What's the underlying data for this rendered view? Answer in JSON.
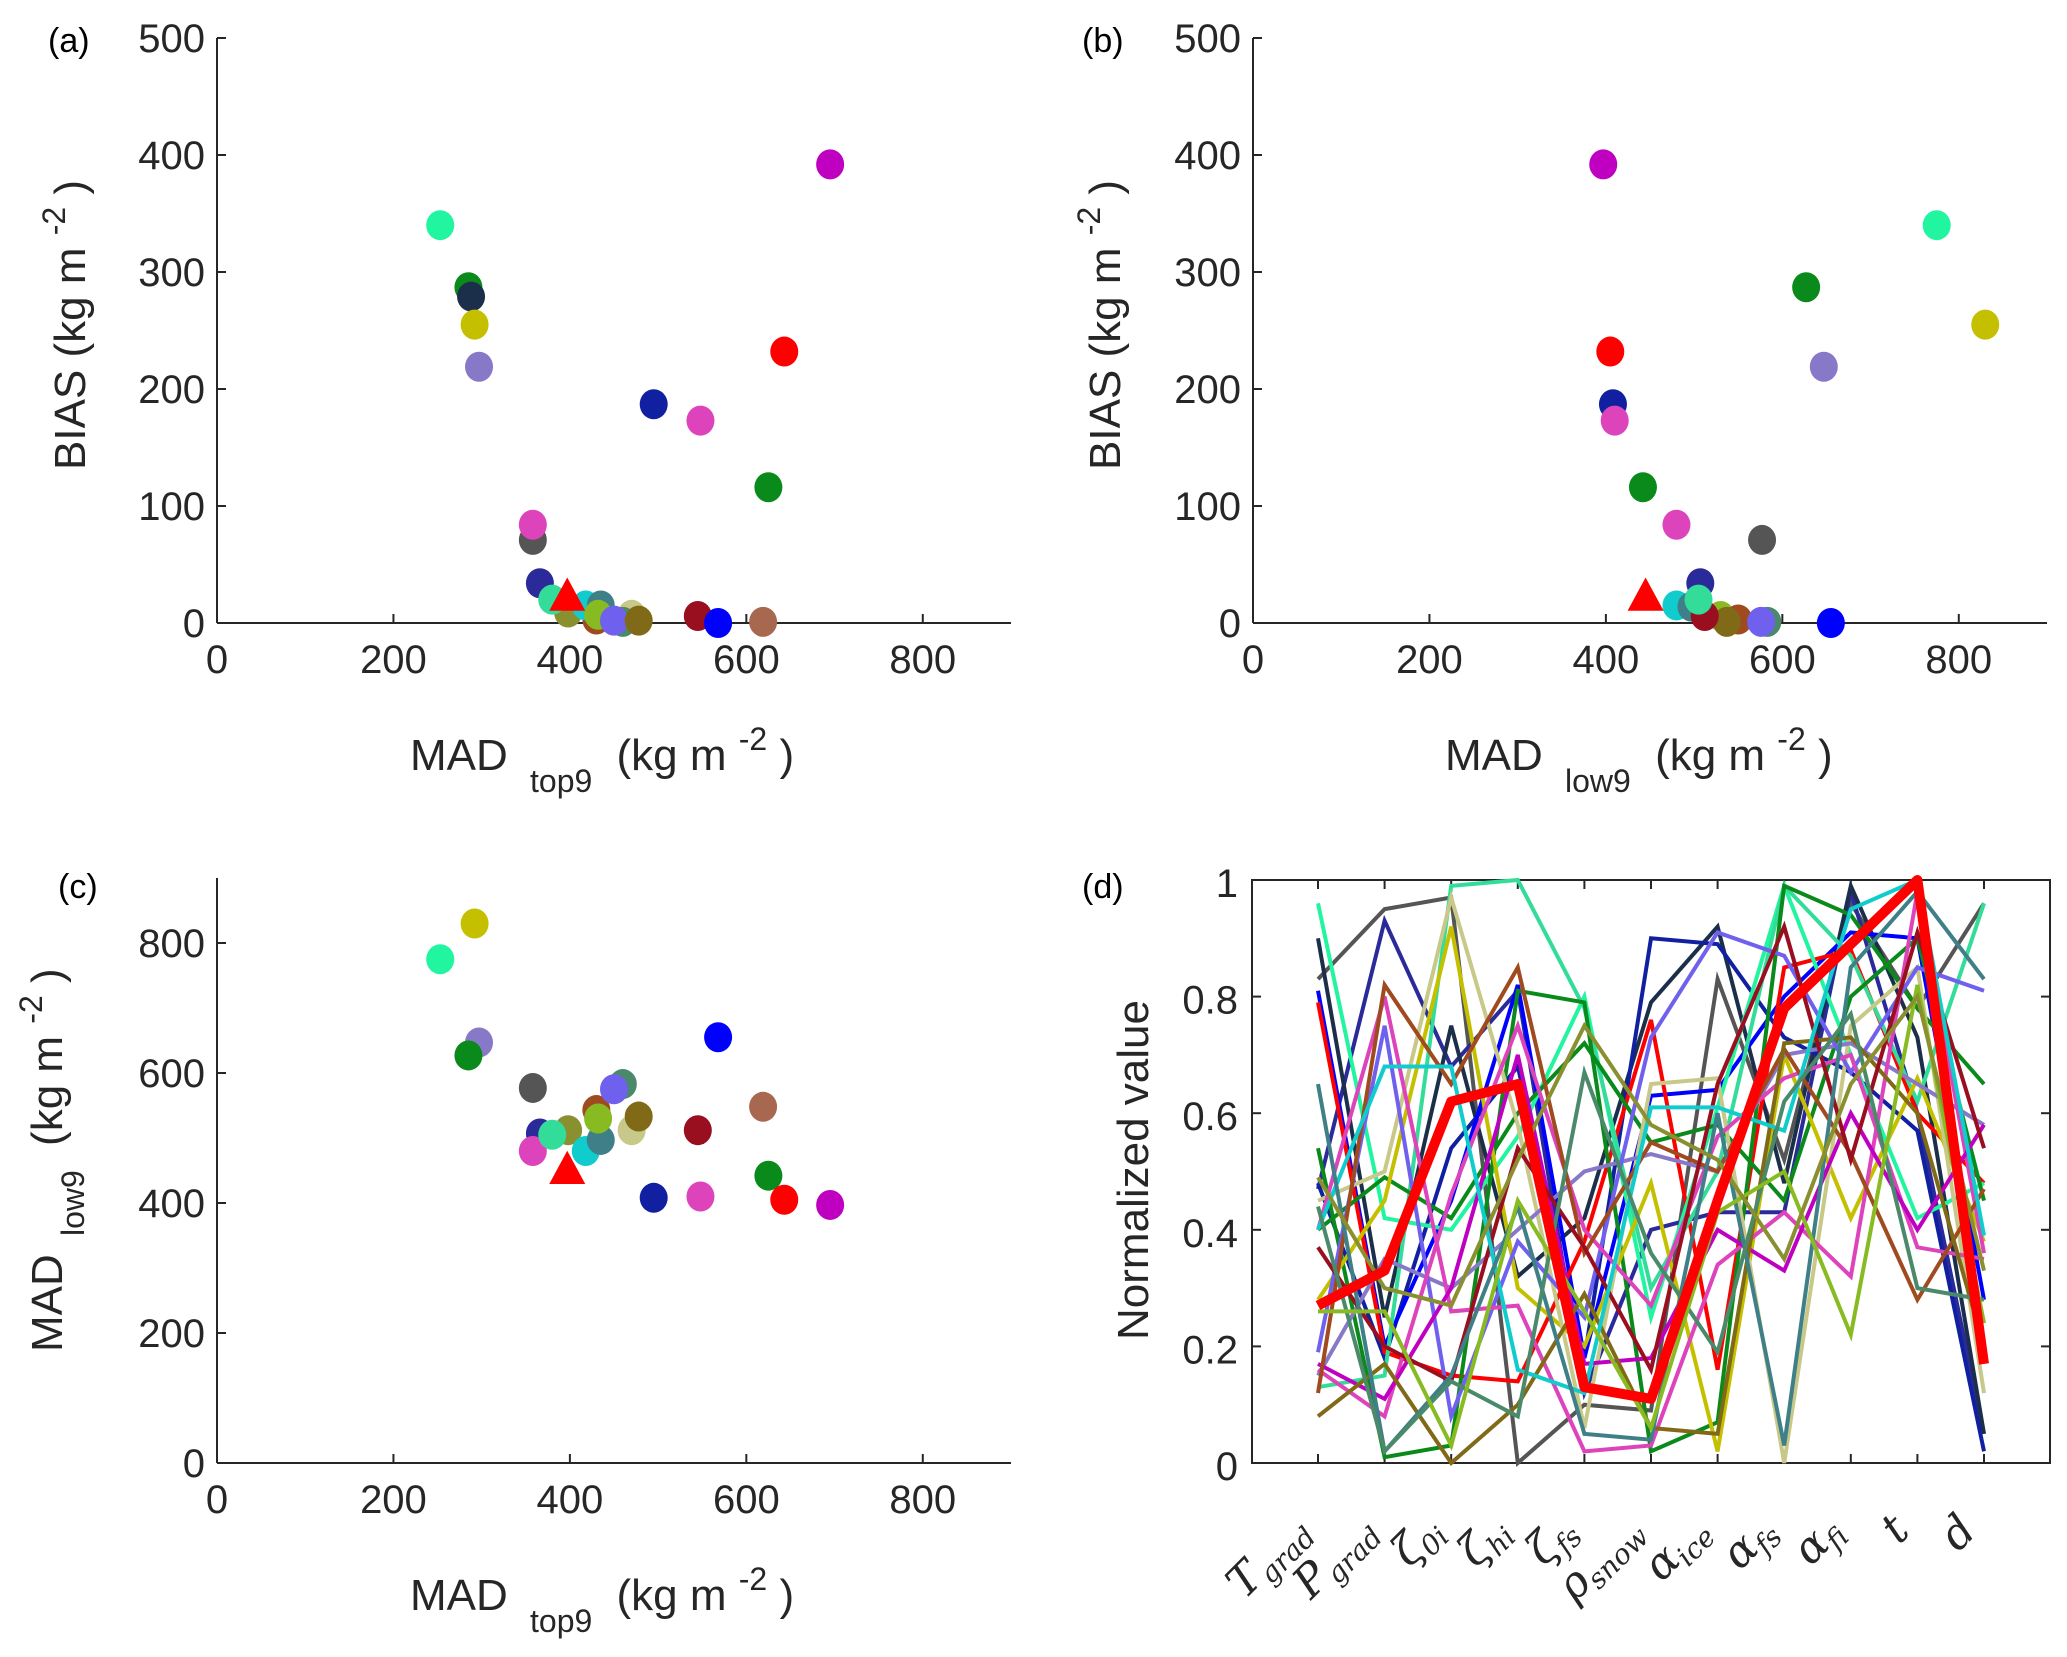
{
  "chart_data": [
    {
      "id": "a",
      "type": "scatter",
      "panel_label": "(a)",
      "xlabel": {
        "main": "MAD",
        "sub": "top9",
        "unit_pre": "(kg m",
        "unit_sup": "-2",
        "unit_post": ")"
      },
      "ylabel": {
        "main": "BIAS (kg m",
        "sup": "-2",
        "post": ")"
      },
      "xlim": [
        0,
        900
      ],
      "ylim": [
        0,
        500
      ],
      "xticks": [
        0,
        200,
        400,
        600,
        800
      ],
      "yticks": [
        0,
        100,
        200,
        300,
        400,
        500
      ],
      "points": [
        {
          "x": 253,
          "y": 340,
          "color": "#22f5a0"
        },
        {
          "x": 285,
          "y": 287,
          "color": "#0a8a1a"
        },
        {
          "x": 288,
          "y": 279,
          "color": "#1c2f4a"
        },
        {
          "x": 292,
          "y": 255,
          "color": "#c4c000"
        },
        {
          "x": 297,
          "y": 219,
          "color": "#8878c8"
        },
        {
          "x": 695,
          "y": 392,
          "color": "#c000c0"
        },
        {
          "x": 643,
          "y": 232,
          "color": "#ff0000"
        },
        {
          "x": 495,
          "y": 187,
          "color": "#1020a0"
        },
        {
          "x": 548,
          "y": 173,
          "color": "#dd44bb"
        },
        {
          "x": 625,
          "y": 116,
          "color": "#0a8a1a"
        },
        {
          "x": 358,
          "y": 71,
          "color": "#555555"
        },
        {
          "x": 358,
          "y": 84,
          "color": "#dd44bb"
        },
        {
          "x": 366,
          "y": 34,
          "color": "#2a2a9a"
        },
        {
          "x": 398,
          "y": 9,
          "color": "#8a9030"
        },
        {
          "x": 380,
          "y": 20,
          "color": "#33dd99"
        },
        {
          "x": 430,
          "y": 3,
          "color": "#a04a20"
        },
        {
          "x": 418,
          "y": 15,
          "color": "#11cccc"
        },
        {
          "x": 435,
          "y": 15,
          "color": "#3f7f88"
        },
        {
          "x": 470,
          "y": 7,
          "color": "#c8c888"
        },
        {
          "x": 432,
          "y": 7,
          "color": "#88bb22"
        },
        {
          "x": 460,
          "y": 1,
          "color": "#4a8a6a"
        },
        {
          "x": 450,
          "y": 2,
          "color": "#7060ee"
        },
        {
          "x": 478,
          "y": 2,
          "color": "#806a18"
        },
        {
          "x": 545,
          "y": 6,
          "color": "#990f20"
        },
        {
          "x": 568,
          "y": 0,
          "color": "#0000ff"
        },
        {
          "x": 619,
          "y": 1,
          "color": "#a86850"
        }
      ],
      "highlight": {
        "x": 397,
        "y": 22,
        "marker": "triangle",
        "color": "#ff0000"
      }
    },
    {
      "id": "b",
      "type": "scatter",
      "panel_label": "(b)",
      "xlabel": {
        "main": "MAD",
        "sub": "low9",
        "unit_pre": "(kg m",
        "unit_sup": "-2",
        "unit_post": ")"
      },
      "ylabel": {
        "main": "BIAS (kg m",
        "sup": "-2",
        "post": ")"
      },
      "xlim": [
        0,
        900
      ],
      "ylim": [
        0,
        500
      ],
      "xticks": [
        0,
        200,
        400,
        600,
        800
      ],
      "yticks": [
        0,
        100,
        200,
        300,
        400,
        500
      ],
      "points": [
        {
          "x": 775,
          "y": 340,
          "color": "#22f5a0"
        },
        {
          "x": 627,
          "y": 287,
          "color": "#0a8a1a"
        },
        {
          "x": 830,
          "y": 255,
          "color": "#c4c000"
        },
        {
          "x": 647,
          "y": 219,
          "color": "#8878c8"
        },
        {
          "x": 397,
          "y": 392,
          "color": "#c000c0"
        },
        {
          "x": 405,
          "y": 232,
          "color": "#ff0000"
        },
        {
          "x": 408,
          "y": 187,
          "color": "#1020a0"
        },
        {
          "x": 410,
          "y": 173,
          "color": "#dd44bb"
        },
        {
          "x": 442,
          "y": 116,
          "color": "#0a8a1a"
        },
        {
          "x": 480,
          "y": 84,
          "color": "#dd44bb"
        },
        {
          "x": 577,
          "y": 71,
          "color": "#555555"
        },
        {
          "x": 507,
          "y": 34,
          "color": "#2a2a9a"
        },
        {
          "x": 480,
          "y": 15,
          "color": "#11cccc"
        },
        {
          "x": 497,
          "y": 14,
          "color": "#3f7f88"
        },
        {
          "x": 530,
          "y": 6,
          "color": "#88bb22"
        },
        {
          "x": 550,
          "y": 3,
          "color": "#a04a20"
        },
        {
          "x": 537,
          "y": 1,
          "color": "#806a18"
        },
        {
          "x": 512,
          "y": 6,
          "color": "#990f20"
        },
        {
          "x": 505,
          "y": 20,
          "color": "#33dd99"
        },
        {
          "x": 583,
          "y": 1,
          "color": "#4a8a6a"
        },
        {
          "x": 576,
          "y": 1,
          "color": "#7060ee"
        },
        {
          "x": 655,
          "y": 0,
          "color": "#0000ff"
        }
      ],
      "highlight": {
        "x": 445,
        "y": 22,
        "marker": "triangle",
        "color": "#ff0000"
      }
    },
    {
      "id": "c",
      "type": "scatter",
      "panel_label": "(c)",
      "xlabel": {
        "main": "MAD",
        "sub": "top9",
        "unit_pre": "(kg m",
        "unit_sup": "-2",
        "unit_post": ")"
      },
      "ylabel": {
        "main": "MAD",
        "sub": "low9",
        "unit_pre": "(kg m",
        "unit_sup": "-2",
        "unit_post": ")"
      },
      "xlim": [
        0,
        900
      ],
      "ylim": [
        0,
        900
      ],
      "xticks": [
        0,
        200,
        400,
        600,
        800
      ],
      "yticks": [
        0,
        200,
        400,
        600,
        800
      ],
      "points": [
        {
          "x": 253,
          "y": 775,
          "color": "#22f5a0"
        },
        {
          "x": 292,
          "y": 830,
          "color": "#c4c000"
        },
        {
          "x": 297,
          "y": 647,
          "color": "#8878c8"
        },
        {
          "x": 285,
          "y": 627,
          "color": "#0a8a1a"
        },
        {
          "x": 358,
          "y": 577,
          "color": "#555555"
        },
        {
          "x": 366,
          "y": 507,
          "color": "#2a2a9a"
        },
        {
          "x": 358,
          "y": 480,
          "color": "#dd44bb"
        },
        {
          "x": 398,
          "y": 512,
          "color": "#8a9030"
        },
        {
          "x": 380,
          "y": 505,
          "color": "#33dd99"
        },
        {
          "x": 418,
          "y": 480,
          "color": "#11cccc"
        },
        {
          "x": 435,
          "y": 497,
          "color": "#3f7f88"
        },
        {
          "x": 430,
          "y": 543,
          "color": "#a04a20"
        },
        {
          "x": 432,
          "y": 530,
          "color": "#88bb22"
        },
        {
          "x": 460,
          "y": 583,
          "color": "#4a8a6a"
        },
        {
          "x": 450,
          "y": 575,
          "color": "#7060ee"
        },
        {
          "x": 470,
          "y": 512,
          "color": "#c8c888"
        },
        {
          "x": 478,
          "y": 533,
          "color": "#806a18"
        },
        {
          "x": 545,
          "y": 512,
          "color": "#990f20"
        },
        {
          "x": 568,
          "y": 655,
          "color": "#0000ff"
        },
        {
          "x": 619,
          "y": 548,
          "color": "#a86850"
        },
        {
          "x": 495,
          "y": 408,
          "color": "#1020a0"
        },
        {
          "x": 548,
          "y": 410,
          "color": "#dd44bb"
        },
        {
          "x": 625,
          "y": 442,
          "color": "#0a8a1a"
        },
        {
          "x": 643,
          "y": 405,
          "color": "#ff0000"
        },
        {
          "x": 695,
          "y": 397,
          "color": "#c000c0"
        }
      ],
      "highlight": {
        "x": 397,
        "y": 450,
        "marker": "triangle",
        "color": "#ff0000"
      }
    },
    {
      "id": "d",
      "type": "line",
      "panel_label": "(d)",
      "ylabel": "Normalized value",
      "ylim": [
        0,
        1
      ],
      "yticks": [
        0,
        0.2,
        0.4,
        0.6,
        0.8,
        1
      ],
      "yticklabels": [
        "0",
        "0.2",
        "0.4",
        "0.6",
        "0.8",
        "1"
      ],
      "categories": [
        {
          "base": "T",
          "sub": "grad"
        },
        {
          "base": "P",
          "sub": "grad"
        },
        {
          "base": "ζ",
          "sub": "0i"
        },
        {
          "base": "ζ",
          "sub": "hi"
        },
        {
          "base": "ζ",
          "sub": "fs"
        },
        {
          "base": "ρ",
          "sub": "snow"
        },
        {
          "base": "α",
          "sub": "ice"
        },
        {
          "base": "α",
          "sub": "fs"
        },
        {
          "base": "α",
          "sub": "fi"
        },
        {
          "base": "t",
          "sub": ""
        },
        {
          "base": "d",
          "sub": ""
        }
      ],
      "series": [
        {
          "color": "#555555",
          "values": [
            0.83,
            0.95,
            0.97,
            0.0,
            0.1,
            0.09,
            0.83,
            0.52,
            0.96,
            0.78,
            0.96
          ]
        },
        {
          "color": "#2a2a9a",
          "values": [
            0.47,
            0.93,
            0.68,
            0.81,
            0.12,
            0.4,
            0.43,
            0.43,
            0.98,
            0.6,
            0.05
          ]
        },
        {
          "color": "#1c2f4a",
          "values": [
            0.9,
            0.25,
            0.75,
            0.32,
            0.42,
            0.79,
            0.92,
            0.48,
            0.99,
            0.73,
            0.05
          ]
        },
        {
          "color": "#1020a0",
          "values": [
            0.48,
            0.18,
            0.54,
            0.68,
            0.18,
            0.9,
            0.89,
            0.73,
            0.67,
            0.57,
            0.02
          ]
        },
        {
          "color": "#0000ff",
          "values": [
            0.81,
            0.2,
            0.45,
            0.82,
            0.18,
            0.63,
            0.64,
            0.8,
            0.91,
            0.9,
            0.28
          ]
        },
        {
          "color": "#ff0000",
          "values": [
            0.79,
            0.19,
            0.15,
            0.14,
            0.38,
            0.76,
            0.16,
            0.85,
            0.88,
            0.6,
            0.48
          ]
        },
        {
          "color": "#22f5a0",
          "values": [
            0.96,
            0.42,
            0.4,
            0.56,
            0.8,
            0.25,
            0.61,
            0.99,
            0.7,
            0.42,
            0.48
          ]
        },
        {
          "color": "#33dd99",
          "values": [
            0.13,
            0.15,
            0.99,
            1.0,
            0.78,
            0.3,
            0.5,
            0.99,
            0.87,
            0.62,
            0.96
          ]
        },
        {
          "color": "#0a8a1a",
          "values": [
            0.54,
            0.01,
            0.03,
            0.81,
            0.79,
            0.02,
            0.07,
            0.99,
            0.94,
            0.78,
            0.65
          ]
        },
        {
          "color": "#0a8a1a",
          "values": [
            0.4,
            0.49,
            0.42,
            0.6,
            0.72,
            0.55,
            0.58,
            0.45,
            0.8,
            0.9,
            0.45
          ]
        },
        {
          "color": "#c4c000",
          "values": [
            0.28,
            0.45,
            0.92,
            0.3,
            0.2,
            0.48,
            0.02,
            0.7,
            0.42,
            0.66,
            0.38
          ]
        },
        {
          "color": "#c8c888",
          "values": [
            0.45,
            0.5,
            0.97,
            0.58,
            0.06,
            0.65,
            0.66,
            0.0,
            0.75,
            0.85,
            0.12
          ]
        },
        {
          "color": "#8878c8",
          "values": [
            0.15,
            0.35,
            0.3,
            0.4,
            0.5,
            0.53,
            0.5,
            0.7,
            0.72,
            0.65,
            0.58
          ]
        },
        {
          "color": "#7060ee",
          "values": [
            0.19,
            0.75,
            0.08,
            0.38,
            0.25,
            0.73,
            0.91,
            0.87,
            0.67,
            0.85,
            0.81
          ]
        },
        {
          "color": "#dd44bb",
          "values": [
            0.4,
            0.8,
            0.26,
            0.27,
            0.02,
            0.03,
            0.34,
            0.43,
            0.32,
            0.98,
            0.36
          ]
        },
        {
          "color": "#dd44bb",
          "values": [
            0.16,
            0.08,
            0.46,
            0.75,
            0.4,
            0.27,
            0.56,
            0.66,
            0.7,
            0.37,
            0.35
          ]
        },
        {
          "color": "#c000c0",
          "values": [
            0.17,
            0.11,
            0.3,
            0.7,
            0.17,
            0.18,
            0.4,
            0.33,
            0.6,
            0.4,
            0.58
          ]
        },
        {
          "color": "#a04a20",
          "values": [
            0.12,
            0.82,
            0.65,
            0.85,
            0.36,
            0.55,
            0.5,
            0.71,
            0.53,
            0.28,
            0.47
          ]
        },
        {
          "color": "#806a18",
          "values": [
            0.08,
            0.17,
            0.0,
            0.1,
            0.29,
            0.06,
            0.05,
            0.72,
            0.73,
            0.6,
            0.2
          ]
        },
        {
          "color": "#990f20",
          "values": [
            0.37,
            0.2,
            0.14,
            0.54,
            0.37,
            0.16,
            0.65,
            0.92,
            0.52,
            0.91,
            0.54
          ]
        },
        {
          "color": "#11cccc",
          "values": [
            0.4,
            0.68,
            0.68,
            0.16,
            0.12,
            0.61,
            0.61,
            0.57,
            0.95,
            1.0,
            0.39
          ]
        },
        {
          "color": "#3f7f88",
          "values": [
            0.65,
            0.02,
            0.15,
            0.44,
            0.05,
            0.04,
            0.6,
            0.03,
            0.85,
            0.98,
            0.83
          ]
        },
        {
          "color": "#4a8a6a",
          "values": [
            0.44,
            0.02,
            0.14,
            0.08,
            0.67,
            0.36,
            0.19,
            0.62,
            0.77,
            0.3,
            0.28
          ]
        },
        {
          "color": "#88bb22",
          "values": [
            0.26,
            0.26,
            0.03,
            0.45,
            0.26,
            0.06,
            0.43,
            0.5,
            0.22,
            0.82,
            0.24
          ]
        },
        {
          "color": "#8a9030",
          "values": [
            0.49,
            0.3,
            0.27,
            0.52,
            0.75,
            0.58,
            0.52,
            0.35,
            0.65,
            0.8,
            0.33
          ]
        }
      ],
      "highlight": {
        "color": "#ff0000",
        "values": [
          0.27,
          0.33,
          0.62,
          0.65,
          0.13,
          0.11,
          0.45,
          0.78,
          0.89,
          1.0,
          0.17
        ]
      }
    }
  ]
}
